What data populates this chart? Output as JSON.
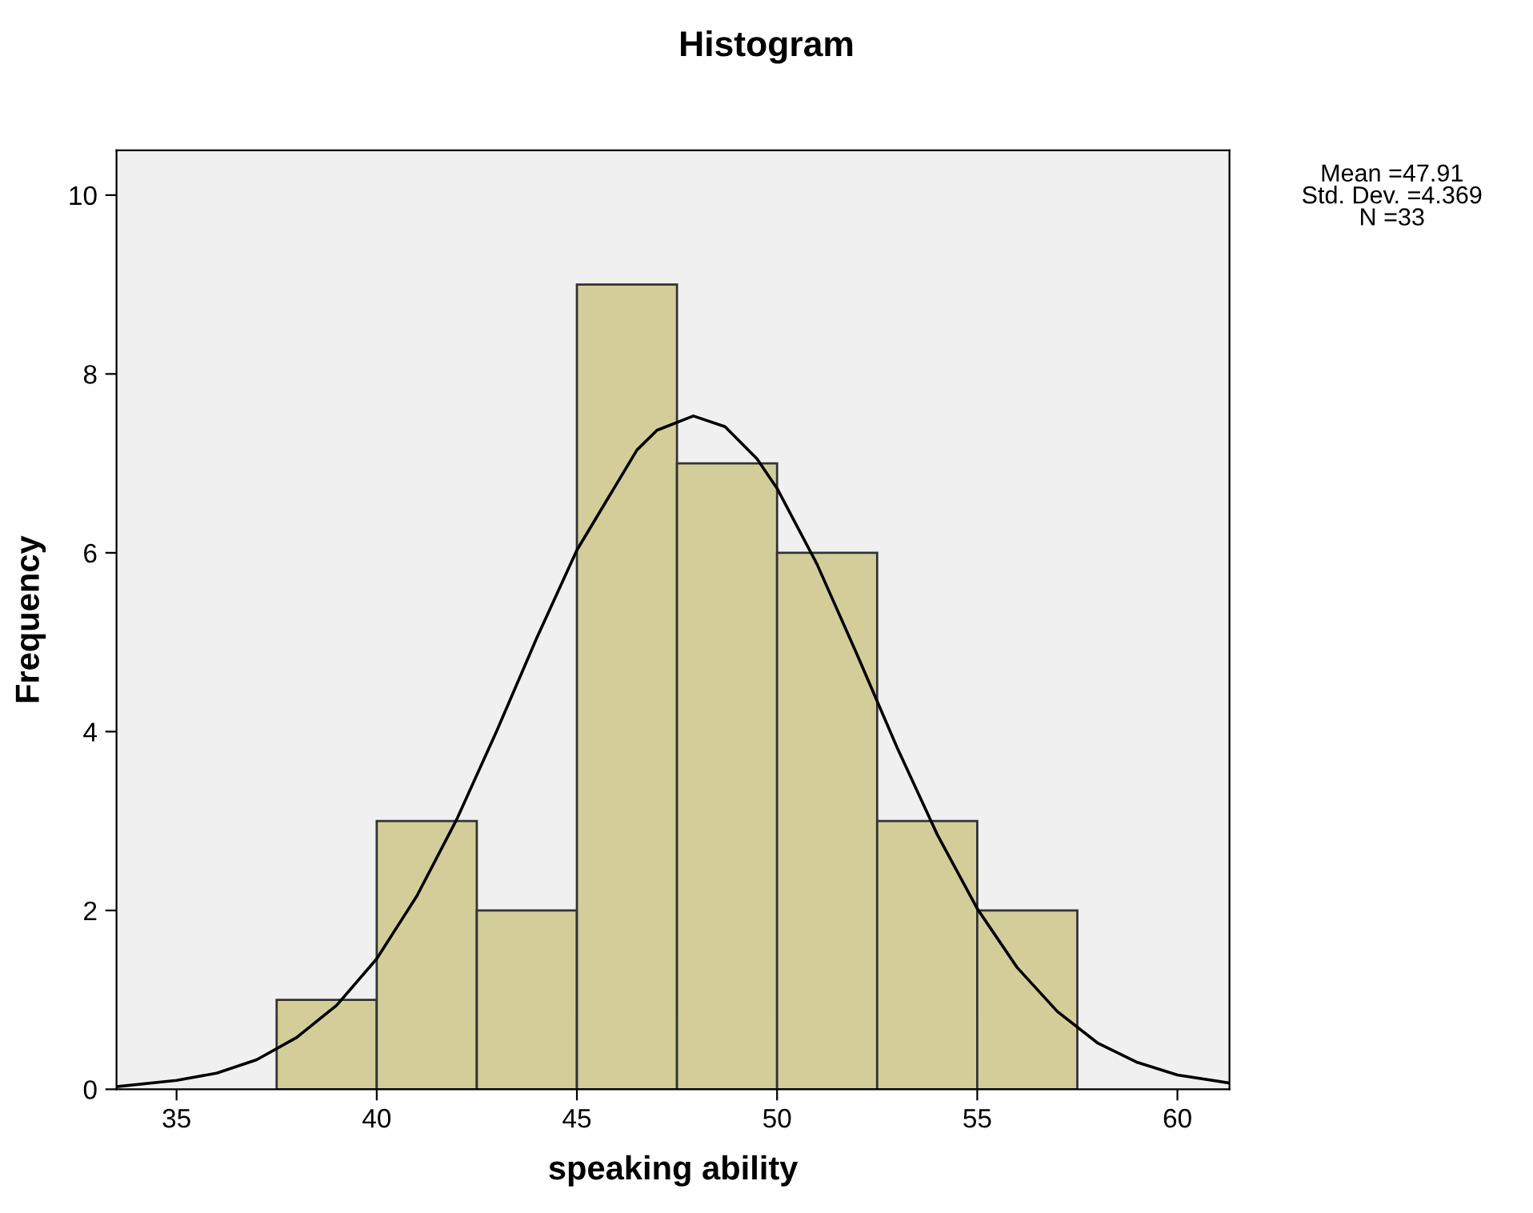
{
  "chart_data": {
    "type": "histogram",
    "title": "Histogram",
    "xlabel": "speaking ability",
    "ylabel": "Frequency",
    "bins": [
      37.5,
      40,
      42.5,
      45,
      47.5,
      50,
      52.5,
      55,
      57.5
    ],
    "values": [
      1,
      3,
      2,
      9,
      7,
      6,
      3,
      2
    ],
    "color": "#d3ce99",
    "series": [
      {
        "type": "line",
        "color": "#000000",
        "x": [
          33.5,
          35,
          36,
          37,
          38,
          39,
          40,
          41,
          42,
          43,
          44,
          45,
          46.5,
          47,
          47.91,
          48.7,
          49.5,
          50,
          51,
          52,
          53,
          54,
          55,
          56,
          57,
          58,
          59,
          60,
          61.3
        ],
        "values": [
          0.03,
          0.1,
          0.18,
          0.33,
          0.58,
          0.94,
          1.46,
          2.16,
          3.02,
          4.01,
          5.05,
          6.03,
          7.15,
          7.37,
          7.53,
          7.41,
          7.05,
          6.72,
          5.87,
          4.86,
          3.82,
          2.85,
          2.02,
          1.36,
          0.87,
          0.52,
          0.3,
          0.16,
          0.07
        ]
      }
    ],
    "xlim": [
      33.5,
      61.3
    ],
    "xticks": [
      35,
      40,
      45,
      50,
      55,
      60
    ],
    "ylim": [
      0,
      10.5
    ],
    "yticks": [
      0,
      2,
      4,
      6,
      8,
      10
    ],
    "grid": false,
    "legend": false,
    "annotations": [
      "Mean =47.91\nStd. Dev. =4.369\nN =33"
    ]
  }
}
